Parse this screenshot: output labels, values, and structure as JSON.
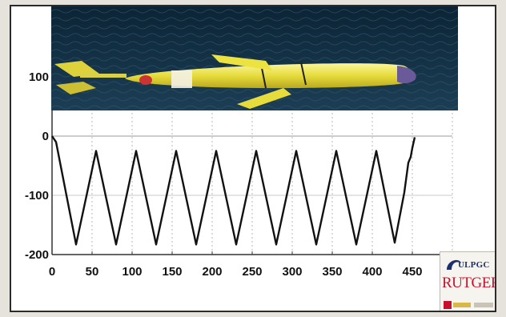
{
  "chart_data": {
    "type": "line",
    "title": "",
    "xlabel": "",
    "ylabel": "",
    "xlim": [
      0,
      500
    ],
    "ylim": [
      -200,
      0
    ],
    "x_ticks": [
      0,
      50,
      100,
      150,
      200,
      250,
      300,
      350,
      400,
      450
    ],
    "y_ticks": [
      100,
      0,
      -100,
      -200
    ],
    "grid": true,
    "series": [
      {
        "color": "#111111",
        "x": [
          0,
          5,
          30,
          55,
          80,
          105,
          130,
          155,
          180,
          205,
          230,
          255,
          280,
          305,
          330,
          355,
          380,
          405,
          428,
          440,
          445,
          448,
          450,
          453
        ],
        "y": [
          0,
          -10,
          -183,
          -25,
          -183,
          -25,
          -183,
          -25,
          -183,
          -25,
          -183,
          -25,
          -183,
          -25,
          -183,
          -25,
          -183,
          -25,
          -180,
          -95,
          -45,
          -35,
          -20,
          -2
        ]
      }
    ]
  },
  "photo": {
    "icon": "underwater-glider-photo",
    "colors": {
      "water": "#0f2b3f",
      "hull": "#e8e24a",
      "stripe": "#cc3333"
    }
  },
  "logos": {
    "ulpgc": "ULPGC",
    "rutgers": "RUTGERS",
    "strip_icon": "spanish-government-logos"
  }
}
